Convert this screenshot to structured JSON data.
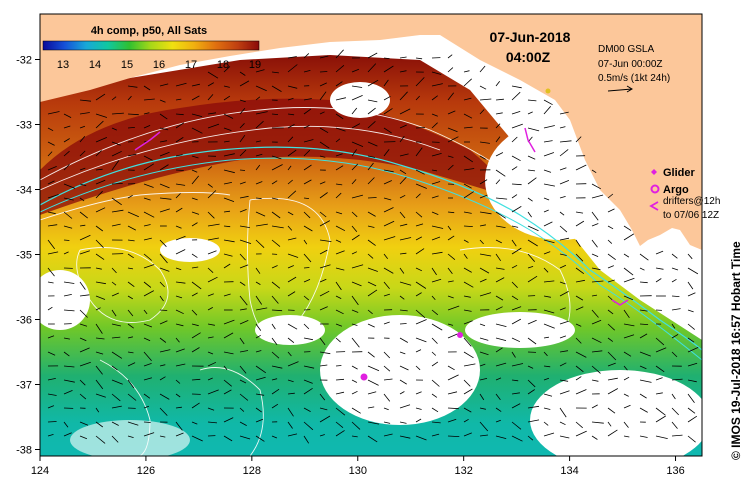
{
  "map": {
    "composite_label": "4h comp, p50, All Sats",
    "date": "07-Jun-2018",
    "time": "04:00Z",
    "gsla_label": "DM00 GSLA",
    "gsla_time": "07-Jun 00:00Z",
    "scale_arrow_label": "0.5m/s (1kt 24h)",
    "credit": "© IMOS 19-Jul-2018 16:57 Hobart Time",
    "color_scale": {
      "ticks": [
        "13",
        "14",
        "15",
        "16",
        "17",
        "18",
        "19"
      ],
      "colors": [
        "#0a0a9a",
        "#1550d8",
        "#18a8d8",
        "#10c8a0",
        "#30c030",
        "#a8d818",
        "#f0e010",
        "#f0b010",
        "#e07010",
        "#c04010",
        "#8a0a0a"
      ]
    },
    "x_axis": {
      "ticks": [
        "124",
        "126",
        "128",
        "130",
        "132",
        "134",
        "136"
      ],
      "range": [
        124,
        136.5
      ]
    },
    "y_axis": {
      "ticks": [
        "-32",
        "-33",
        "-34",
        "-35",
        "-36",
        "-37",
        "-38"
      ],
      "range": [
        -38.1,
        -31.3
      ]
    },
    "legend": {
      "glider": "Glider",
      "argo": "Argo",
      "drifters_line1": "drifters@12h",
      "drifters_line2": "to 07/06 12Z"
    },
    "colors": {
      "land": "#fcc79a",
      "glider": "#e020e0",
      "bathymetry": "#40e0e0",
      "contour": "#ffffff"
    }
  }
}
